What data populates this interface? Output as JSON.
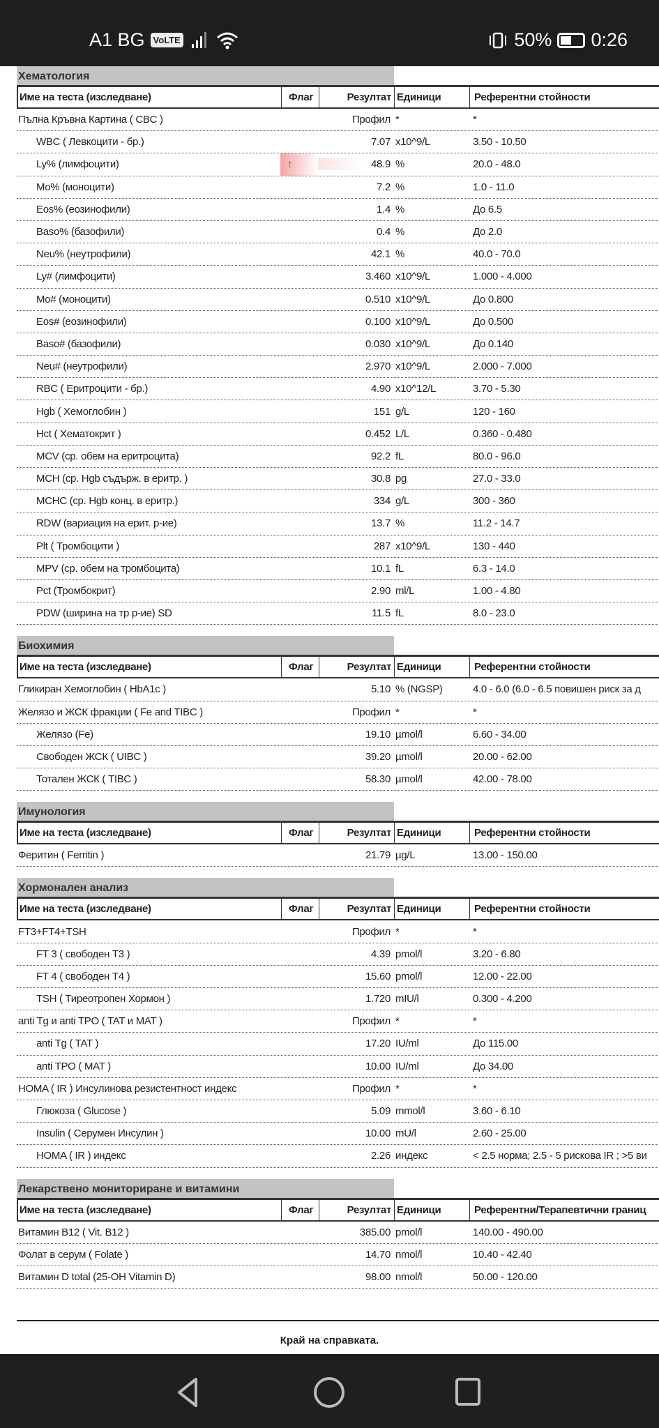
{
  "status_bar": {
    "carrier": "A1 BG",
    "volte": "VoLTE",
    "battery": "50%",
    "battery_level": 0.5,
    "time": "0:26"
  },
  "columns": {
    "name": "Име на теста (изследване)",
    "flag": "Флаг",
    "result": "Резултат",
    "units": "Единици",
    "ref": "Референтни стойности",
    "ref_alt": "Референтни/Терапевтични границ"
  },
  "sections": [
    {
      "title": "Хематология",
      "ref_header": "Референтни стойности",
      "rows": [
        {
          "name": "Пълна Кръвна Картина ( CBC )",
          "indent": false,
          "flag": "",
          "result": "Профил",
          "units": "*",
          "ref": "*"
        },
        {
          "name": "WBC ( Левкоцити - бр.)",
          "indent": true,
          "flag": "",
          "result": "7.07",
          "units": "x10^9/L",
          "ref": "3.50 - 10.50"
        },
        {
          "name": "Ly% (лимфоцити)",
          "indent": true,
          "flag": "↑",
          "result": "48.9",
          "units": "%",
          "ref": "20.0 - 48.0"
        },
        {
          "name": "Mo% (моноцити)",
          "indent": true,
          "flag": "",
          "result": "7.2",
          "units": "%",
          "ref": "1.0 - 11.0"
        },
        {
          "name": "Eos% (еозинофили)",
          "indent": true,
          "flag": "",
          "result": "1.4",
          "units": "%",
          "ref": "До 6.5"
        },
        {
          "name": "Baso% (базофили)",
          "indent": true,
          "flag": "",
          "result": "0.4",
          "units": "%",
          "ref": "До 2.0"
        },
        {
          "name": "Neu% (неутрофили)",
          "indent": true,
          "flag": "",
          "result": "42.1",
          "units": "%",
          "ref": "40.0 - 70.0"
        },
        {
          "name": "Ly# (лимфоцити)",
          "indent": true,
          "flag": "",
          "result": "3.460",
          "units": "x10^9/L",
          "ref": "1.000 - 4.000"
        },
        {
          "name": "Mo# (моноцити)",
          "indent": true,
          "flag": "",
          "result": "0.510",
          "units": "x10^9/L",
          "ref": "До 0.800"
        },
        {
          "name": "Eos# (еозинофили)",
          "indent": true,
          "flag": "",
          "result": "0.100",
          "units": "x10^9/L",
          "ref": "До 0.500"
        },
        {
          "name": "Baso# (базофили)",
          "indent": true,
          "flag": "",
          "result": "0.030",
          "units": "x10^9/L",
          "ref": "До 0.140"
        },
        {
          "name": "Neu# (неутрофили)",
          "indent": true,
          "flag": "",
          "result": "2.970",
          "units": "x10^9/L",
          "ref": "2.000 - 7.000"
        },
        {
          "name": "RBC ( Еритроцити - бр.)",
          "indent": true,
          "flag": "",
          "result": "4.90",
          "units": "x10^12/L",
          "ref": "3.70 - 5.30"
        },
        {
          "name": "Hgb ( Хемоглобин )",
          "indent": true,
          "flag": "",
          "result": "151",
          "units": "g/L",
          "ref": "120 - 160"
        },
        {
          "name": "Hct ( Хематокрит )",
          "indent": true,
          "flag": "",
          "result": "0.452",
          "units": "L/L",
          "ref": "0.360 - 0.480"
        },
        {
          "name": "MCV (ср. обем на еритроцита)",
          "indent": true,
          "flag": "",
          "result": "92.2",
          "units": "fL",
          "ref": "80.0 - 96.0"
        },
        {
          "name": "MCH (ср. Hgb съдърж. в еритр. )",
          "indent": true,
          "flag": "",
          "result": "30.8",
          "units": "pg",
          "ref": "27.0 - 33.0"
        },
        {
          "name": "MCHC (ср. Hgb конц. в еритр.)",
          "indent": true,
          "flag": "",
          "result": "334",
          "units": "g/L",
          "ref": "300 - 360"
        },
        {
          "name": "RDW (вариация на ерит. р-ие)",
          "indent": true,
          "flag": "",
          "result": "13.7",
          "units": "%",
          "ref": "11.2 - 14.7"
        },
        {
          "name": "Plt ( Тромбоцити )",
          "indent": true,
          "flag": "",
          "result": "287",
          "units": "x10^9/L",
          "ref": "130 - 440"
        },
        {
          "name": "MPV (ср. обем на тромбоцита)",
          "indent": true,
          "flag": "",
          "result": "10.1",
          "units": "fL",
          "ref": "6.3 - 14.0"
        },
        {
          "name": "Pct (Тромбокрит)",
          "indent": true,
          "flag": "",
          "result": "2.90",
          "units": "ml/L",
          "ref": "1.00 - 4.80"
        },
        {
          "name": "PDW (ширина на тр р-ие) SD",
          "indent": true,
          "flag": "",
          "result": "11.5",
          "units": "fL",
          "ref": "8.0 - 23.0"
        }
      ]
    },
    {
      "title": "Биохимия",
      "ref_header": "Референтни стойности",
      "rows": [
        {
          "name": "Гликиран Хемоглобин ( HbA1c )",
          "indent": false,
          "flag": "",
          "result": "5.10",
          "units": "% (NGSP)",
          "ref": "4.0 - 6.0 (6.0 - 6.5 повишен риск за д"
        },
        {
          "name": "Желязо и ЖСК фракции ( Fe and TIBC )",
          "indent": false,
          "flag": "",
          "result": "Профил",
          "units": "*",
          "ref": "*"
        },
        {
          "name": "Желязо (Fe)",
          "indent": true,
          "flag": "",
          "result": "19.10",
          "units": "µmol/l",
          "ref": "6.60 - 34.00"
        },
        {
          "name": "Свободен ЖСК ( UIBC )",
          "indent": true,
          "flag": "",
          "result": "39.20",
          "units": "µmol/l",
          "ref": "20.00 - 62.00"
        },
        {
          "name": "Тотален ЖСК ( TIBC )",
          "indent": true,
          "flag": "",
          "result": "58.30",
          "units": "µmol/l",
          "ref": "42.00 - 78.00"
        }
      ]
    },
    {
      "title": "Имунология",
      "ref_header": "Референтни стойности",
      "rows": [
        {
          "name": "Феритин ( Ferritin )",
          "indent": false,
          "flag": "",
          "result": "21.79",
          "units": "µg/L",
          "ref": "13.00 - 150.00"
        }
      ]
    },
    {
      "title": "Хормонален анализ",
      "ref_header": "Референтни стойности",
      "rows": [
        {
          "name": "FT3+FT4+TSH",
          "indent": false,
          "flag": "",
          "result": "Профил",
          "units": "*",
          "ref": "*"
        },
        {
          "name": "FT 3 ( свободен Т3 )",
          "indent": true,
          "flag": "",
          "result": "4.39",
          "units": "pmol/l",
          "ref": "3.20 - 6.80"
        },
        {
          "name": "FT 4 ( свободен Т4 )",
          "indent": true,
          "flag": "",
          "result": "15.60",
          "units": "pmol/l",
          "ref": "12.00 - 22.00"
        },
        {
          "name": "TSH ( Тиреотропен Хормон )",
          "indent": true,
          "flag": "",
          "result": "1.720",
          "units": "mIU/l",
          "ref": "0.300 - 4.200"
        },
        {
          "name": "anti Tg и anti TPO ( TAT и MAT )",
          "indent": false,
          "flag": "",
          "result": "Профил",
          "units": "*",
          "ref": "*"
        },
        {
          "name": "anti Tg ( TAT )",
          "indent": true,
          "flag": "",
          "result": "17.20",
          "units": "IU/ml",
          "ref": "До 115.00"
        },
        {
          "name": "anti TPO ( MAT )",
          "indent": true,
          "flag": "",
          "result": "10.00",
          "units": "IU/ml",
          "ref": "До 34.00"
        },
        {
          "name": "HOMA ( IR ) Инсулинова резистентност индекс",
          "indent": false,
          "flag": "",
          "result": "Профил",
          "units": "*",
          "ref": "*"
        },
        {
          "name": "Глюкоза ( Glucose )",
          "indent": true,
          "flag": "",
          "result": "5.09",
          "units": "mmol/l",
          "ref": "3.60 - 6.10"
        },
        {
          "name": "Insulin ( Серумен Инсулин )",
          "indent": true,
          "flag": "",
          "result": "10.00",
          "units": "mU/l",
          "ref": "2.60 - 25.00"
        },
        {
          "name": "HOMA ( IR ) индекс",
          "indent": true,
          "flag": "",
          "result": "2.26",
          "units": "индекс",
          "ref": "< 2.5 норма; 2.5 - 5 рискова IR ; >5 ви"
        }
      ]
    },
    {
      "title": "Лекарствено мониториране и витамини",
      "ref_header": "Референтни/Терапевтични границ",
      "rows": [
        {
          "name": "Витамин B12 ( Vit. B12 )",
          "indent": false,
          "flag": "",
          "result": "385.00",
          "units": "pmol/l",
          "ref": "140.00 - 490.00"
        },
        {
          "name": "Фолат в серум ( Folate )",
          "indent": false,
          "flag": "",
          "result": "14.70",
          "units": "nmol/l",
          "ref": "10.40 - 42.40"
        },
        {
          "name": "Витамин D total (25-OH Vitamin D)",
          "indent": false,
          "flag": "",
          "result": "98.00",
          "units": "nmol/l",
          "ref": "50.00 - 120.00"
        }
      ]
    }
  ],
  "footer": {
    "end_text": "Край на справката."
  },
  "nav": {
    "back": "back-icon",
    "home": "home-icon",
    "recents": "recents-icon"
  }
}
